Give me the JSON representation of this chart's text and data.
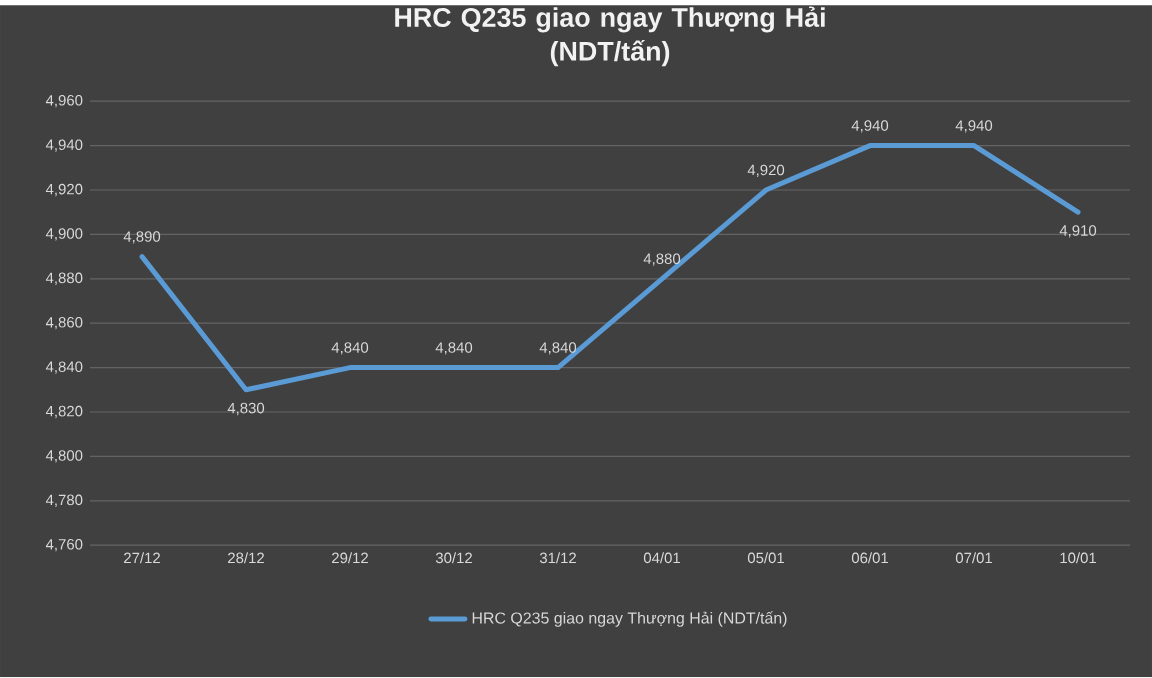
{
  "chart_data": {
    "type": "line",
    "title": "HRC Q235 giao ngay Thượng Hải\n(NDT/tấn)",
    "categories": [
      "27/12",
      "28/12",
      "29/12",
      "30/12",
      "31/12",
      "04/01",
      "05/01",
      "06/01",
      "07/01",
      "10/01"
    ],
    "series": [
      {
        "name": "HRC Q235 giao ngay Thượng Hải (NDT/tấn)",
        "color": "#5b9bd5",
        "values": [
          4890,
          4830,
          4840,
          4840,
          4840,
          4880,
          4920,
          4940,
          4940,
          4910
        ],
        "value_labels": [
          "4,890",
          "4,830",
          "4,840",
          "4,840",
          "4,840",
          "4,880",
          "4,920",
          "4,940",
          "4,940",
          "4,910"
        ]
      }
    ],
    "ylim": [
      4760,
      4960
    ],
    "yticks": [
      {
        "value": 4760,
        "label": "4,760"
      },
      {
        "value": 4780,
        "label": "4,780"
      },
      {
        "value": 4800,
        "label": "4,800"
      },
      {
        "value": 4820,
        "label": "4,820"
      },
      {
        "value": 4840,
        "label": "4,840"
      },
      {
        "value": 4860,
        "label": "4,860"
      },
      {
        "value": 4880,
        "label": "4,880"
      },
      {
        "value": 4900,
        "label": "4,900"
      },
      {
        "value": 4920,
        "label": "4,920"
      },
      {
        "value": 4940,
        "label": "4,940"
      },
      {
        "value": 4960,
        "label": "4,960"
      }
    ],
    "grid": "y",
    "legend": "bottom",
    "line_style": "solid"
  }
}
